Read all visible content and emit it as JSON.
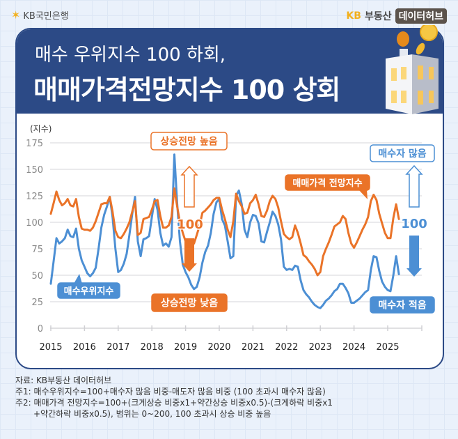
{
  "branding": {
    "bank_logo": "KB국민은행",
    "bank_logo_icon": "kb-star-icon",
    "hub_logo_kb": "KB",
    "hub_logo_name": "부동산",
    "hub_logo_tag": "데이터허브"
  },
  "header": {
    "title_line1": "매수 우위지수 100 하회,",
    "title_line2": "매매가격전망지수 100 상회",
    "illustration": "building-with-coins-icon"
  },
  "colors": {
    "navy": "#2c4a86",
    "orange": "#ea7328",
    "blue": "#4c8fd4"
  },
  "annotations": {
    "rise_high": "상승전망 높음",
    "rise_low": "상승전망 낮음",
    "orange_100": "100",
    "blue_100": "100",
    "buyers_many": "매수자 많음",
    "buyers_few": "매수자 적음",
    "series_label_price": "매매가격 전망지수",
    "series_label_buy": "매수우위지수"
  },
  "chart_data": {
    "type": "line",
    "title": "매수 우위지수 100 하회, 매매가격전망지수 100 상회",
    "ylabel": "(지수)",
    "xlabel": "",
    "ylim": [
      0,
      175
    ],
    "yticks": [
      0,
      25,
      50,
      75,
      100,
      125,
      150,
      175
    ],
    "xticks": [
      "2015",
      "2016",
      "2017",
      "2018",
      "2019",
      "2020",
      "2021",
      "2022",
      "2023",
      "2024",
      "2025"
    ],
    "x_start": "2015-01",
    "x_frequency": "monthly",
    "grid": true,
    "legend": "inline labels",
    "series": [
      {
        "name": "매매가격 전망지수",
        "color": "#ea7328",
        "values": [
          108,
          118,
          129,
          121,
          116,
          118,
          122,
          116,
          115,
          122,
          105,
          94,
          93,
          93,
          92,
          95,
          101,
          109,
          117,
          118,
          118,
          124,
          110,
          92,
          86,
          85,
          89,
          94,
          100,
          110,
          120,
          88,
          90,
          103,
          104,
          105,
          112,
          120,
          121,
          106,
          95,
          95,
          97,
          105,
          132,
          115,
          100,
          90,
          82,
          78,
          78,
          80,
          88,
          97,
          109,
          111,
          114,
          117,
          121,
          123,
          123,
          112,
          103,
          93,
          86,
          101,
          127,
          120,
          115,
          108,
          109,
          118,
          121,
          126,
          117,
          106,
          105,
          111,
          120,
          125,
          122,
          114,
          101,
          89,
          86,
          84,
          86,
          97,
          90,
          80,
          69,
          67,
          63,
          60,
          56,
          50,
          53,
          68,
          75,
          81,
          88,
          96,
          98,
          100,
          106,
          103,
          90,
          80,
          76,
          81,
          87,
          93,
          98,
          105,
          120,
          126,
          121,
          108,
          99,
          90,
          85,
          85,
          104,
          117,
          103
        ]
      },
      {
        "name": "매수우위지수",
        "color": "#4c8fd4",
        "values": [
          42,
          63,
          85,
          80,
          82,
          85,
          93,
          87,
          86,
          94,
          75,
          64,
          58,
          52,
          49,
          52,
          57,
          75,
          95,
          107,
          115,
          124,
          105,
          75,
          53,
          55,
          61,
          70,
          88,
          108,
          124,
          82,
          68,
          84,
          85,
          87,
          105,
          122,
          112,
          90,
          78,
          80,
          77,
          86,
          164,
          118,
          82,
          60,
          53,
          48,
          41,
          37,
          39,
          48,
          62,
          72,
          78,
          90,
          108,
          119,
          122,
          103,
          97,
          82,
          66,
          68,
          125,
          130,
          117,
          93,
          86,
          100,
          107,
          106,
          99,
          82,
          81,
          91,
          100,
          110,
          106,
          98,
          84,
          58,
          55,
          56,
          55,
          59,
          58,
          45,
          36,
          32,
          29,
          25,
          22,
          20,
          19,
          22,
          26,
          28,
          31,
          35,
          37,
          42,
          42,
          38,
          33,
          24,
          24,
          26,
          28,
          31,
          34,
          36,
          55,
          68,
          67,
          54,
          44,
          39,
          36,
          35,
          50,
          68,
          51
        ]
      }
    ]
  },
  "footnotes": {
    "source": "자료: KB부동산 데이터허브",
    "note1": "주1: 매수우위지수=100+매수자 많음 비중-매도자 많음 비중 (100 초과시 매수자 많음)",
    "note2_line1": "주2: 매매가격 전망지수=100+(크게상승 비중x1+약간상승 비중x0.5)-(크게하락 비중x1",
    "note2_line2": "+약간하락 비중x0.5), 범위는 0~200, 100 초과시 상승 비중 높음"
  }
}
